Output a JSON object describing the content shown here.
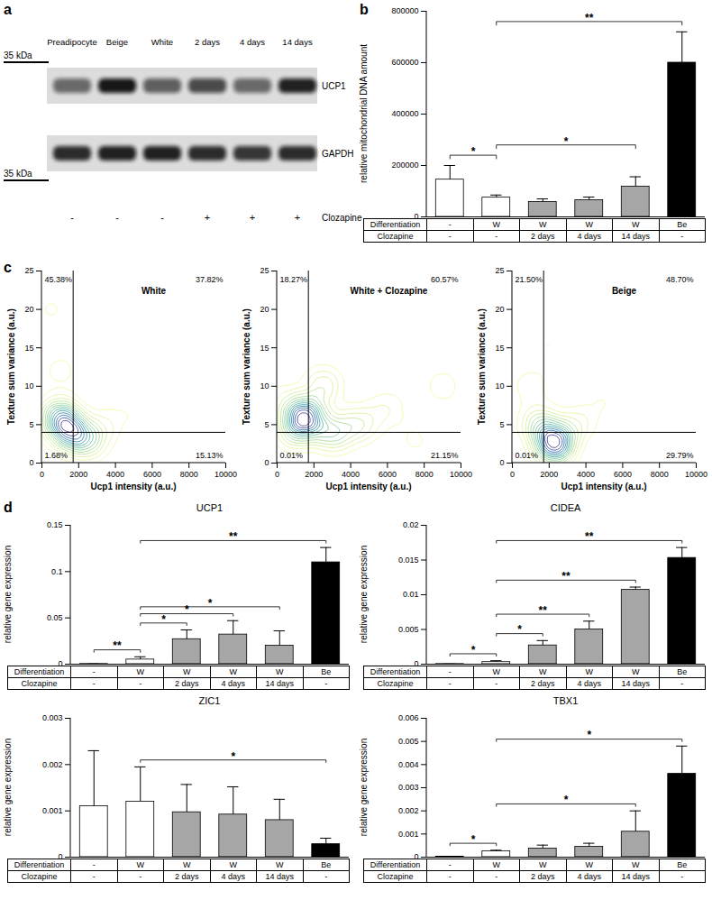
{
  "chart_data": [
    {
      "panel": "a",
      "type": "western_blot",
      "lanes": [
        "Preadipocyte",
        "Beige",
        "White",
        "2 days",
        "4 days",
        "14 days"
      ],
      "bands": [
        {
          "name": "UCP1",
          "ladder": "35 kDa",
          "intensity": [
            0.55,
            0.95,
            0.6,
            0.7,
            0.55,
            0.9
          ]
        },
        {
          "name": "GAPDH",
          "ladder": "35 kDa",
          "intensity": [
            0.85,
            0.9,
            0.9,
            0.85,
            0.8,
            0.85
          ]
        }
      ],
      "treatment_label": "Clozapine",
      "treatment": [
        "-",
        "-",
        "-",
        "+",
        "+",
        "+"
      ]
    },
    {
      "panel": "b",
      "type": "bar",
      "y_label": "relative mitochondrial DNA amount",
      "ylim": [
        0,
        800000
      ],
      "yticks": [
        0,
        200000,
        400000,
        600000,
        800000
      ],
      "values": [
        145000,
        75000,
        58000,
        65000,
        118000,
        600000
      ],
      "errors": [
        55000,
        10000,
        12000,
        12000,
        38000,
        120000
      ],
      "colors": [
        "#ffffff",
        "#ffffff",
        "#a6a6a6",
        "#a6a6a6",
        "#a6a6a6",
        "#000000"
      ],
      "significance": [
        {
          "from": 0,
          "to": 1,
          "label": "*"
        },
        {
          "from": 1,
          "to": 4,
          "label": "*"
        },
        {
          "from": 1,
          "to": 5,
          "label": "**"
        }
      ],
      "table": [
        {
          "label": "Differentiation",
          "cells": [
            "-",
            "W",
            "W",
            "W",
            "W",
            "Be"
          ]
        },
        {
          "label": "Clozapine",
          "cells": [
            "-",
            "-",
            "2 days",
            "4 days",
            "14 days",
            "-"
          ]
        }
      ]
    },
    {
      "panel": "c",
      "type": "contour",
      "title": "White",
      "x_label": "Ucp1 intensity (a.u.)",
      "y_label": "Texture sum variance (a.u.)",
      "xlim": [
        0,
        10000
      ],
      "xticks": [
        0,
        2000,
        4000,
        6000,
        8000,
        10000
      ],
      "ylim": [
        0,
        25
      ],
      "yticks": [
        0,
        5,
        10,
        15,
        20,
        25
      ],
      "gate": {
        "x": 1700,
        "y": 4
      },
      "quadrants": {
        "top_left": {
          "value": 45.38,
          "label": "45.38%"
        },
        "top_right": {
          "value": 37.82,
          "label": "37.82%"
        },
        "bottom_left": {
          "value": 1.68,
          "label": "1.68%"
        },
        "bottom_right": {
          "value": 15.13,
          "label": "15.13%"
        }
      },
      "clusters": {
        "x": [
          1000,
          1500,
          2500,
          3500,
          500,
          1000,
          5000,
          8500
        ],
        "y": [
          6,
          4,
          3,
          5,
          20,
          12,
          7,
          8
        ],
        "weight": [
          3,
          3,
          2,
          0.6,
          0.4,
          0.5,
          0.3,
          0.2
        ]
      }
    },
    {
      "type": "contour",
      "title": "White + Clozapine",
      "x_label": "Ucp1 intensity (a.u.)",
      "y_label": "Texture sum variance (a.u.)",
      "xlim": [
        0,
        10000
      ],
      "xticks": [
        0,
        2000,
        4000,
        6000,
        8000,
        10000
      ],
      "ylim": [
        0,
        25
      ],
      "yticks": [
        0,
        5,
        10,
        15,
        20,
        25
      ],
      "gate": {
        "x": 1700,
        "y": 4
      },
      "quadrants": {
        "top_left": {
          "value": 18.27,
          "label": "18.27%"
        },
        "top_right": {
          "value": 60.57,
          "label": "60.57%"
        },
        "bottom_left": {
          "value": 0.01,
          "label": "0.01%"
        },
        "bottom_right": {
          "value": 21.15,
          "label": "21.15%"
        }
      },
      "clusters": {
        "x": [
          1500,
          1000,
          3000,
          4500,
          2500,
          6000,
          9000,
          500,
          1000,
          7500
        ],
        "y": [
          6,
          4,
          4,
          5,
          10,
          7,
          10,
          8,
          18,
          3
        ],
        "weight": [
          3,
          1,
          1.5,
          1,
          1,
          0.5,
          0.4,
          0.5,
          0.2,
          0.3
        ]
      }
    },
    {
      "type": "contour",
      "title": "Beige",
      "x_label": "Ucp1 intensity (a.u.)",
      "y_label": "Texture sum variance (a.u.)",
      "xlim": [
        0,
        10000
      ],
      "xticks": [
        0,
        2000,
        4000,
        6000,
        8000,
        10000
      ],
      "ylim": [
        0,
        25
      ],
      "yticks": [
        0,
        5,
        10,
        15,
        20,
        25
      ],
      "gate": {
        "x": 1700,
        "y": 4
      },
      "quadrants": {
        "top_left": {
          "value": 21.5,
          "label": "21.50%"
        },
        "top_right": {
          "value": 48.7,
          "label": "48.70%"
        },
        "bottom_left": {
          "value": 0.01,
          "label": "0.01%"
        },
        "bottom_right": {
          "value": 29.79,
          "label": "29.79%"
        }
      },
      "clusters": {
        "x": [
          2300,
          1500,
          1000,
          3500,
          2000,
          5000,
          8000,
          1000
        ],
        "y": [
          2.5,
          5,
          10,
          5,
          15,
          8,
          10,
          18
        ],
        "weight": [
          4,
          1.5,
          0.5,
          0.8,
          0.3,
          0.3,
          0.2,
          0.2
        ]
      }
    },
    {
      "panel": "d",
      "type": "bar",
      "title": "UCP1",
      "y_label": "relative gene expression",
      "ylim": [
        0,
        0.15
      ],
      "yticks": [
        0,
        0.05,
        0.1,
        0.15
      ],
      "values": [
        0.0002,
        0.005,
        0.027,
        0.032,
        0.02,
        0.11
      ],
      "errors": [
        0.0001,
        0.003,
        0.01,
        0.015,
        0.016,
        0.016
      ],
      "colors": [
        "#ffffff",
        "#ffffff",
        "#a6a6a6",
        "#a6a6a6",
        "#a6a6a6",
        "#000000"
      ],
      "significance": [
        {
          "from": 0,
          "to": 1,
          "label": "**"
        },
        {
          "from": 1,
          "to": 2,
          "label": "*"
        },
        {
          "from": 1,
          "to": 3,
          "label": "*"
        },
        {
          "from": 1,
          "to": 4,
          "label": "*"
        },
        {
          "from": 1,
          "to": 5,
          "label": "**"
        }
      ],
      "table": [
        {
          "label": "Differentiation",
          "cells": [
            "-",
            "W",
            "W",
            "W",
            "W",
            "Be"
          ]
        },
        {
          "label": "Clozapine",
          "cells": [
            "-",
            "-",
            "2 days",
            "4 days",
            "14 days",
            "-"
          ]
        }
      ]
    },
    {
      "type": "bar",
      "title": "CIDEA",
      "y_label": "relative gene expression",
      "ylim": [
        0,
        0.02
      ],
      "yticks": [
        0,
        0.005,
        0.01,
        0.015,
        0.02
      ],
      "values": [
        2e-05,
        0.0003,
        0.0027,
        0.005,
        0.0107,
        0.0153
      ],
      "errors": [
        1e-05,
        0.0002,
        0.0007,
        0.0012,
        0.0004,
        0.0015
      ],
      "colors": [
        "#ffffff",
        "#ffffff",
        "#a6a6a6",
        "#a6a6a6",
        "#a6a6a6",
        "#000000"
      ],
      "significance": [
        {
          "from": 0,
          "to": 1,
          "label": "*"
        },
        {
          "from": 1,
          "to": 2,
          "label": "*"
        },
        {
          "from": 1,
          "to": 3,
          "label": "**"
        },
        {
          "from": 1,
          "to": 4,
          "label": "**"
        },
        {
          "from": 1,
          "to": 5,
          "label": "**"
        }
      ],
      "table": [
        {
          "label": "Differentiation",
          "cells": [
            "-",
            "W",
            "W",
            "W",
            "W",
            "Be"
          ]
        },
        {
          "label": "Clozapine",
          "cells": [
            "-",
            "-",
            "2 days",
            "4 days",
            "14 days",
            "-"
          ]
        }
      ]
    },
    {
      "type": "bar",
      "title": "ZIC1",
      "y_label": "relative gene expression",
      "ylim": [
        0,
        0.003
      ],
      "yticks": [
        0,
        0.001,
        0.002,
        0.003
      ],
      "values": [
        0.0011,
        0.0012,
        0.00097,
        0.00092,
        0.0008,
        0.00028
      ],
      "errors": [
        0.0012,
        0.00075,
        0.0006,
        0.0006,
        0.00045,
        0.00013
      ],
      "colors": [
        "#ffffff",
        "#ffffff",
        "#a6a6a6",
        "#a6a6a6",
        "#a6a6a6",
        "#000000"
      ],
      "significance": [
        {
          "from": 1,
          "to": 5,
          "label": "*"
        }
      ],
      "table": [
        {
          "label": "Differentiation",
          "cells": [
            "-",
            "W",
            "W",
            "W",
            "W",
            "Be"
          ]
        },
        {
          "label": "Clozapine",
          "cells": [
            "-",
            "-",
            "2 days",
            "4 days",
            "14 days",
            "-"
          ]
        }
      ]
    },
    {
      "type": "bar",
      "title": "TBX1",
      "y_label": "relative gene expression",
      "ylim": [
        0,
        0.006
      ],
      "yticks": [
        0,
        0.001,
        0.002,
        0.003,
        0.004,
        0.005,
        0.006
      ],
      "values": [
        2e-05,
        0.00025,
        0.00037,
        0.00045,
        0.0011,
        0.0036
      ],
      "errors": [
        1e-05,
        5e-05,
        0.00015,
        0.00015,
        0.0009,
        0.0012
      ],
      "colors": [
        "#ffffff",
        "#ffffff",
        "#a6a6a6",
        "#a6a6a6",
        "#a6a6a6",
        "#000000"
      ],
      "significance": [
        {
          "from": 0,
          "to": 1,
          "label": "*"
        },
        {
          "from": 1,
          "to": 4,
          "label": "*"
        },
        {
          "from": 1,
          "to": 5,
          "label": "*"
        }
      ],
      "table": [
        {
          "label": "Differentiation",
          "cells": [
            "-",
            "W",
            "W",
            "W",
            "W",
            "Be"
          ]
        },
        {
          "label": "Clozapine",
          "cells": [
            "-",
            "-",
            "2 days",
            "4 days",
            "14 days",
            "-"
          ]
        }
      ]
    }
  ]
}
